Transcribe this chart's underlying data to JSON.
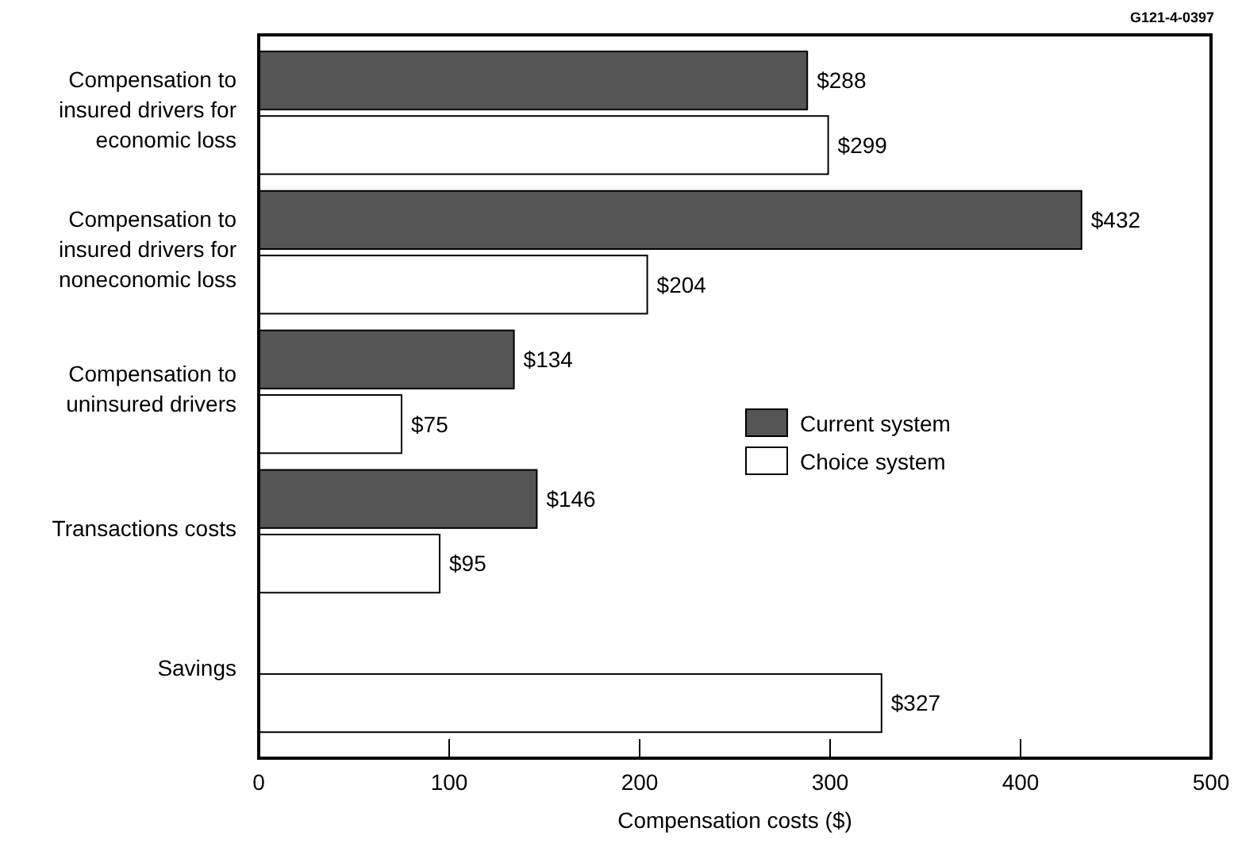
{
  "chart_data": {
    "type": "bar",
    "orientation": "horizontal",
    "xlabel": "Compensation costs ($)",
    "annotations": [
      "G121-4-0397"
    ],
    "categories": [
      "Compensation to insured drivers for economic loss",
      "Compensation to insured drivers for noneconomic loss",
      "Compensation to uninsured drivers",
      "Transactions costs",
      "Savings"
    ],
    "series": [
      {
        "name": "Current system",
        "color": "#555555",
        "values": [
          288,
          432,
          134,
          146,
          null
        ],
        "value_labels": [
          "$288",
          "$432",
          "$134",
          "$146",
          null
        ]
      },
      {
        "name": "Choice system",
        "color": "#ffffff",
        "values": [
          299,
          204,
          75,
          95,
          327
        ],
        "value_labels": [
          "$299",
          "$204",
          "$75",
          "$95",
          "$327"
        ]
      }
    ],
    "xlim": [
      0,
      500
    ],
    "xticks": [
      0,
      100,
      200,
      300,
      400,
      500
    ],
    "grid": false,
    "legend": "right"
  }
}
